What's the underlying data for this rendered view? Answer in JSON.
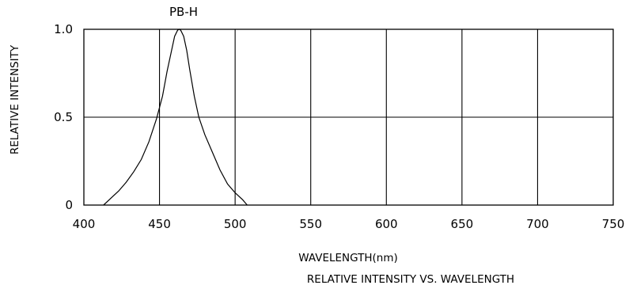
{
  "chart_data": {
    "type": "line",
    "title": "PB-H",
    "caption": "RELATIVE INTENSITY VS. WAVELENGTH",
    "xlabel": "WAVELENGTH(nm)",
    "ylabel": "RELATIVE INTENSITY",
    "xlim": [
      400,
      750
    ],
    "ylim": [
      0,
      1.0
    ],
    "x_ticks": [
      400,
      450,
      500,
      550,
      600,
      650,
      700,
      750
    ],
    "x_tick_labels": [
      "400",
      "450",
      "500",
      "550",
      "600",
      "650",
      "700",
      "750"
    ],
    "y_ticks": [
      0,
      0.5,
      1.0
    ],
    "y_tick_labels": [
      "0",
      "0.5",
      "1.0"
    ],
    "grid": true,
    "series": [
      {
        "x": [
          413,
          418,
          423,
          428,
          433,
          438,
          443,
          448,
          452,
          455,
          458,
          460,
          462,
          463,
          464,
          466,
          468,
          470,
          473,
          476,
          480,
          485,
          490,
          495,
          500,
          505,
          508
        ],
        "y": [
          0.0,
          0.04,
          0.08,
          0.13,
          0.19,
          0.26,
          0.36,
          0.49,
          0.62,
          0.76,
          0.88,
          0.96,
          0.995,
          1.0,
          0.995,
          0.96,
          0.88,
          0.77,
          0.62,
          0.5,
          0.4,
          0.3,
          0.2,
          0.12,
          0.07,
          0.03,
          0.0
        ]
      }
    ]
  }
}
